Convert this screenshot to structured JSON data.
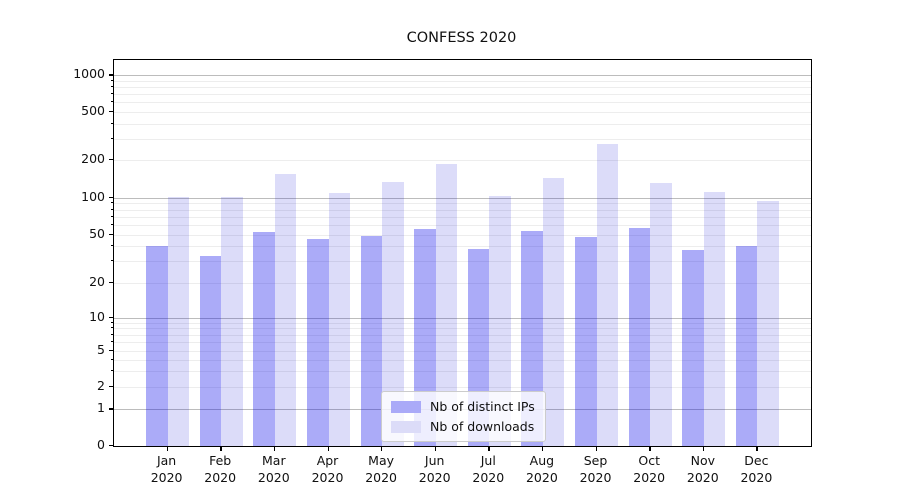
{
  "title": "CONFESS 2020",
  "chart_data": {
    "type": "bar",
    "title": "CONFESS 2020",
    "categories": [
      "Jan 2020",
      "Feb 2020",
      "Mar 2020",
      "Apr 2020",
      "May 2020",
      "Jun 2020",
      "Jul 2020",
      "Aug 2020",
      "Sep 2020",
      "Oct 2020",
      "Nov 2020",
      "Dec 2020"
    ],
    "x_tick_labels": [
      {
        "month": "Jan",
        "year": "2020"
      },
      {
        "month": "Feb",
        "year": "2020"
      },
      {
        "month": "Mar",
        "year": "2020"
      },
      {
        "month": "Apr",
        "year": "2020"
      },
      {
        "month": "May",
        "year": "2020"
      },
      {
        "month": "Jun",
        "year": "2020"
      },
      {
        "month": "Jul",
        "year": "2020"
      },
      {
        "month": "Aug",
        "year": "2020"
      },
      {
        "month": "Sep",
        "year": "2020"
      },
      {
        "month": "Oct",
        "year": "2020"
      },
      {
        "month": "Nov",
        "year": "2020"
      },
      {
        "month": "Dec",
        "year": "2020"
      }
    ],
    "series": [
      {
        "name": "Nb of distinct IPs",
        "color": "#0000eb54",
        "flat_color": "#aaaaf8",
        "values": [
          40,
          33,
          52,
          46,
          49,
          56,
          38,
          53,
          48,
          57,
          37,
          40
        ]
      },
      {
        "name": "Nb of downloads",
        "color": "#0000d223",
        "flat_color": "#dcdcf8",
        "values": [
          101,
          101,
          155,
          110,
          134,
          185,
          103,
          145,
          270,
          130,
          112,
          94
        ]
      }
    ],
    "y_axis": {
      "scale": "symlog",
      "tick_values": [
        0,
        1,
        2,
        5,
        10,
        20,
        50,
        100,
        200,
        500,
        1000
      ],
      "tick_labels": [
        "0",
        "1",
        "2",
        "5",
        "10",
        "20",
        "50",
        "100",
        "200",
        "500",
        "1000"
      ],
      "range": [
        0,
        1200
      ]
    },
    "grid": {
      "on": true,
      "major_values": [
        1,
        10,
        100,
        1000
      ],
      "minor_values": [
        2,
        3,
        4,
        5,
        6,
        7,
        8,
        9,
        20,
        30,
        40,
        50,
        60,
        70,
        80,
        90,
        200,
        300,
        400,
        500,
        600,
        700,
        800,
        900
      ],
      "major_color": "#bcbcbc",
      "minor_color": "#ededed"
    },
    "legend": {
      "position": "inside-lower-center",
      "items": [
        {
          "label": "Nb of distinct IPs",
          "swatch_color": "#aaaaf8"
        },
        {
          "label": "Nb of downloads",
          "swatch_color": "#dcdcf8"
        }
      ]
    },
    "xlabel": "",
    "ylabel": ""
  },
  "colors": {
    "background": "#ffffff",
    "spine": "#000000",
    "text": "#111111",
    "legend_border": "#cccccc"
  }
}
